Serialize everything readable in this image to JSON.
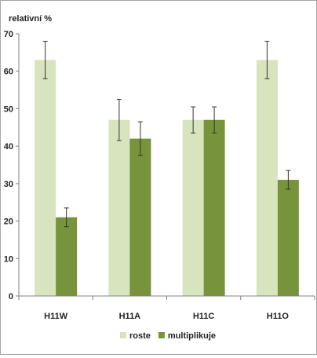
{
  "chart_data": {
    "type": "bar",
    "ylabel": "relativní %",
    "ylim": [
      0,
      70
    ],
    "yticks": [
      0,
      10,
      20,
      30,
      40,
      50,
      60,
      70
    ],
    "categories": [
      "H11W",
      "H11A",
      "H11C",
      "H11O"
    ],
    "series": [
      {
        "name": "roste",
        "color": "#d7e4bd",
        "values": [
          63,
          47,
          47,
          63
        ],
        "errors": [
          5,
          5.5,
          3.5,
          5
        ]
      },
      {
        "name": "multiplikuje",
        "color": "#77933c",
        "values": [
          21,
          42,
          47,
          31
        ],
        "errors": [
          2.5,
          4.5,
          3.5,
          2.5
        ]
      }
    ],
    "grid": false,
    "legend": "bottom"
  }
}
